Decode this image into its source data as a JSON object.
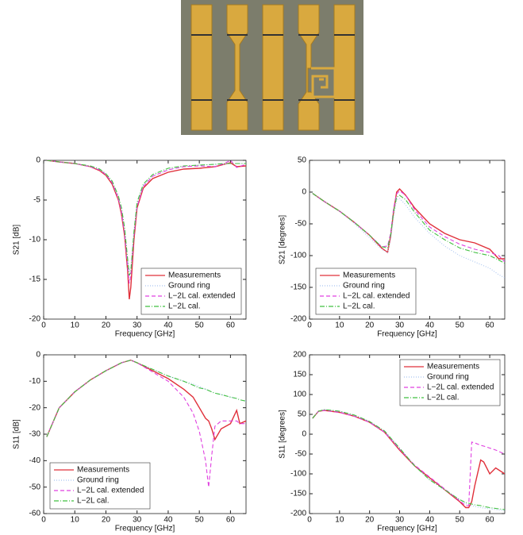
{
  "chart_data": [
    {
      "type": "line",
      "xlabel": "Frequency [GHz]",
      "ylabel": "S21 [dB]",
      "legend": "lower right",
      "xlim": [
        0,
        65
      ],
      "xticks": [
        0,
        10,
        20,
        30,
        40,
        50,
        60
      ],
      "ylim": [
        -20,
        0
      ],
      "yticks": [
        -20,
        -15,
        -10,
        -5,
        0
      ],
      "x": [
        1,
        5,
        10,
        15,
        18,
        20,
        22,
        24,
        25,
        26,
        27,
        27.5,
        28,
        29,
        30,
        32,
        35,
        40,
        45,
        50,
        55,
        58,
        60,
        62,
        65
      ],
      "series": [
        {
          "name": "Measurements",
          "color": "#e0303a",
          "style": "solid",
          "values": [
            0,
            -0.2,
            -0.4,
            -0.8,
            -1.3,
            -1.9,
            -3,
            -5,
            -6.8,
            -9.5,
            -14,
            -17.5,
            -16,
            -10,
            -6,
            -3.5,
            -2.3,
            -1.5,
            -1.1,
            -1,
            -0.8,
            -0.5,
            -0.3,
            -0.8,
            -0.7
          ]
        },
        {
          "name": "Ground ring",
          "color": "#a8c4f0",
          "style": "dotted",
          "values": [
            0,
            -0.2,
            -0.4,
            -0.8,
            -1.2,
            -1.8,
            -2.8,
            -4.8,
            -6.5,
            -9,
            -12.5,
            -14,
            -13.5,
            -9,
            -5.5,
            -3.2,
            -2,
            -1.2,
            -0.8,
            -0.6,
            -0.5,
            -0.5,
            -0.4,
            -0.4,
            -0.4
          ]
        },
        {
          "name": "L−2L cal. extended",
          "color": "#e040e0",
          "style": "dashed",
          "values": [
            0,
            -0.2,
            -0.4,
            -0.8,
            -1.2,
            -1.8,
            -2.8,
            -4.8,
            -6.5,
            -9.2,
            -13.5,
            -15.5,
            -14.5,
            -9.5,
            -5.8,
            -3.3,
            -2,
            -1.2,
            -0.8,
            -0.7,
            -0.8,
            -0.4,
            0,
            -0.9,
            -0.5
          ]
        },
        {
          "name": "L−2L cal.",
          "color": "#40c040",
          "style": "dashdot",
          "values": [
            0,
            -0.2,
            -0.4,
            -0.7,
            -1.1,
            -1.7,
            -2.6,
            -4.5,
            -6,
            -8.5,
            -12.5,
            -14.5,
            -14,
            -9,
            -5.3,
            -3,
            -1.8,
            -1,
            -0.7,
            -0.6,
            -0.5,
            -0.4,
            -0.4,
            -0.4,
            -0.4
          ]
        }
      ]
    },
    {
      "type": "line",
      "xlabel": "Frequency [GHz]",
      "ylabel": "S21 [degrees]",
      "legend": "lower left",
      "xlim": [
        0,
        65
      ],
      "xticks": [
        0,
        10,
        20,
        30,
        40,
        50,
        60
      ],
      "ylim": [
        -200,
        50
      ],
      "yticks": [
        -200,
        -150,
        -100,
        -50,
        0,
        50
      ],
      "x": [
        1,
        5,
        10,
        15,
        20,
        24,
        26,
        27,
        28,
        29,
        30,
        32,
        35,
        40,
        45,
        50,
        55,
        60,
        63,
        65
      ],
      "series": [
        {
          "name": "Measurements",
          "color": "#e0303a",
          "style": "solid",
          "values": [
            -2,
            -15,
            -30,
            -48,
            -68,
            -88,
            -95,
            -70,
            -30,
            0,
            5,
            -5,
            -25,
            -50,
            -65,
            -75,
            -80,
            -90,
            -105,
            -105
          ]
        },
        {
          "name": "Ground ring",
          "color": "#a8c4f0",
          "style": "dotted",
          "values": [
            -2,
            -15,
            -30,
            -50,
            -72,
            -90,
            -95,
            -75,
            -40,
            -12,
            -10,
            -20,
            -40,
            -65,
            -85,
            -100,
            -110,
            -120,
            -130,
            -135
          ]
        },
        {
          "name": "L−2L cal. extended",
          "color": "#e040e0",
          "style": "dashed",
          "values": [
            -2,
            -15,
            -30,
            -48,
            -68,
            -86,
            -85,
            -65,
            -25,
            -3,
            2,
            -5,
            -28,
            -55,
            -70,
            -82,
            -90,
            -95,
            -100,
            -110
          ]
        },
        {
          "name": "L−2L cal.",
          "color": "#40c040",
          "style": "dashdot",
          "values": [
            -2,
            -15,
            -30,
            -48,
            -68,
            -86,
            -88,
            -68,
            -30,
            -8,
            -5,
            -12,
            -32,
            -60,
            -75,
            -88,
            -95,
            -100,
            -107,
            -112
          ]
        }
      ]
    },
    {
      "type": "line",
      "xlabel": "Frequency [GHz]",
      "ylabel": "S11 [dB]",
      "legend": "lower left",
      "xlim": [
        0,
        65
      ],
      "xticks": [
        0,
        10,
        20,
        30,
        40,
        50,
        60
      ],
      "ylim": [
        -60,
        0
      ],
      "yticks": [
        -60,
        -50,
        -40,
        -30,
        -20,
        -10,
        0
      ],
      "x": [
        1,
        5,
        10,
        15,
        20,
        25,
        28,
        30,
        35,
        40,
        45,
        48,
        50,
        52,
        53,
        54,
        55,
        57,
        60,
        62,
        63,
        65
      ],
      "series": [
        {
          "name": "Measurements",
          "color": "#e0303a",
          "style": "solid",
          "values": [
            -31,
            -20,
            -14,
            -9.5,
            -6,
            -3,
            -2,
            -3,
            -6,
            -9,
            -13,
            -16,
            -20,
            -24,
            -25,
            -28,
            -32,
            -28,
            -26,
            -21,
            -26,
            -25
          ]
        },
        {
          "name": "Ground ring",
          "color": "#a8c4f0",
          "style": "dotted",
          "values": [
            -31,
            -20,
            -14,
            -9.5,
            -6,
            -3,
            -2,
            -3,
            -5.5,
            -8,
            -10,
            -11,
            -12,
            -13,
            -13.5,
            -14,
            -14.5,
            -15,
            -16,
            -16.5,
            -17,
            -17.5
          ]
        },
        {
          "name": "L−2L cal. extended",
          "color": "#e040e0",
          "style": "dashed",
          "values": [
            -31,
            -20,
            -14,
            -9.5,
            -6,
            -3,
            -2,
            -3,
            -6.5,
            -10,
            -16,
            -22,
            -29,
            -40,
            -50,
            -38,
            -27,
            -25,
            -25,
            -25,
            -26,
            -26
          ]
        },
        {
          "name": "L−2L cal.",
          "color": "#40c040",
          "style": "dashdot",
          "values": [
            -31,
            -20,
            -14,
            -9.5,
            -6,
            -3,
            -2,
            -3,
            -5.5,
            -8,
            -10,
            -11.5,
            -12.5,
            -13,
            -13.5,
            -14,
            -14.5,
            -15,
            -16,
            -16.5,
            -17,
            -17.5
          ]
        }
      ]
    },
    {
      "type": "line",
      "xlabel": "Frequency [GHz]",
      "ylabel": "S11 [degrees]",
      "legend": "upper right",
      "xlim": [
        0,
        65
      ],
      "xticks": [
        0,
        10,
        20,
        30,
        40,
        50,
        60
      ],
      "ylim": [
        -200,
        200
      ],
      "yticks": [
        -200,
        -150,
        -100,
        -50,
        0,
        50,
        100,
        150,
        200
      ],
      "x": [
        1,
        3,
        5,
        10,
        15,
        20,
        25,
        30,
        35,
        40,
        45,
        50,
        52,
        53,
        54,
        55,
        57,
        58,
        60,
        62,
        65
      ],
      "series": [
        {
          "name": "Measurements",
          "color": "#e0303a",
          "style": "solid",
          "values": [
            40,
            58,
            60,
            55,
            45,
            30,
            5,
            -40,
            -80,
            -110,
            -140,
            -170,
            -185,
            -185,
            -170,
            -130,
            -65,
            -70,
            -100,
            -85,
            -100
          ]
        },
        {
          "name": "Ground ring",
          "color": "#a8c4f0",
          "style": "dotted",
          "values": [
            40,
            58,
            62,
            58,
            48,
            32,
            8,
            -35,
            -80,
            -115,
            -140,
            -165,
            -175,
            -178,
            -180,
            -182,
            -185,
            -186,
            -188,
            -190,
            -192
          ]
        },
        {
          "name": "L−2L cal. extended",
          "color": "#e040e0",
          "style": "dashed",
          "values": [
            40,
            58,
            60,
            55,
            45,
            30,
            5,
            -38,
            -78,
            -108,
            -138,
            -168,
            -180,
            -180,
            -20,
            -22,
            -28,
            -30,
            -35,
            -40,
            -50
          ]
        },
        {
          "name": "L−2L cal.",
          "color": "#40c040",
          "style": "dashdot",
          "values": [
            40,
            58,
            62,
            58,
            48,
            32,
            8,
            -35,
            -80,
            -115,
            -140,
            -165,
            -172,
            -174,
            -176,
            -178,
            -180,
            -182,
            -185,
            -187,
            -190
          ]
        }
      ]
    }
  ]
}
